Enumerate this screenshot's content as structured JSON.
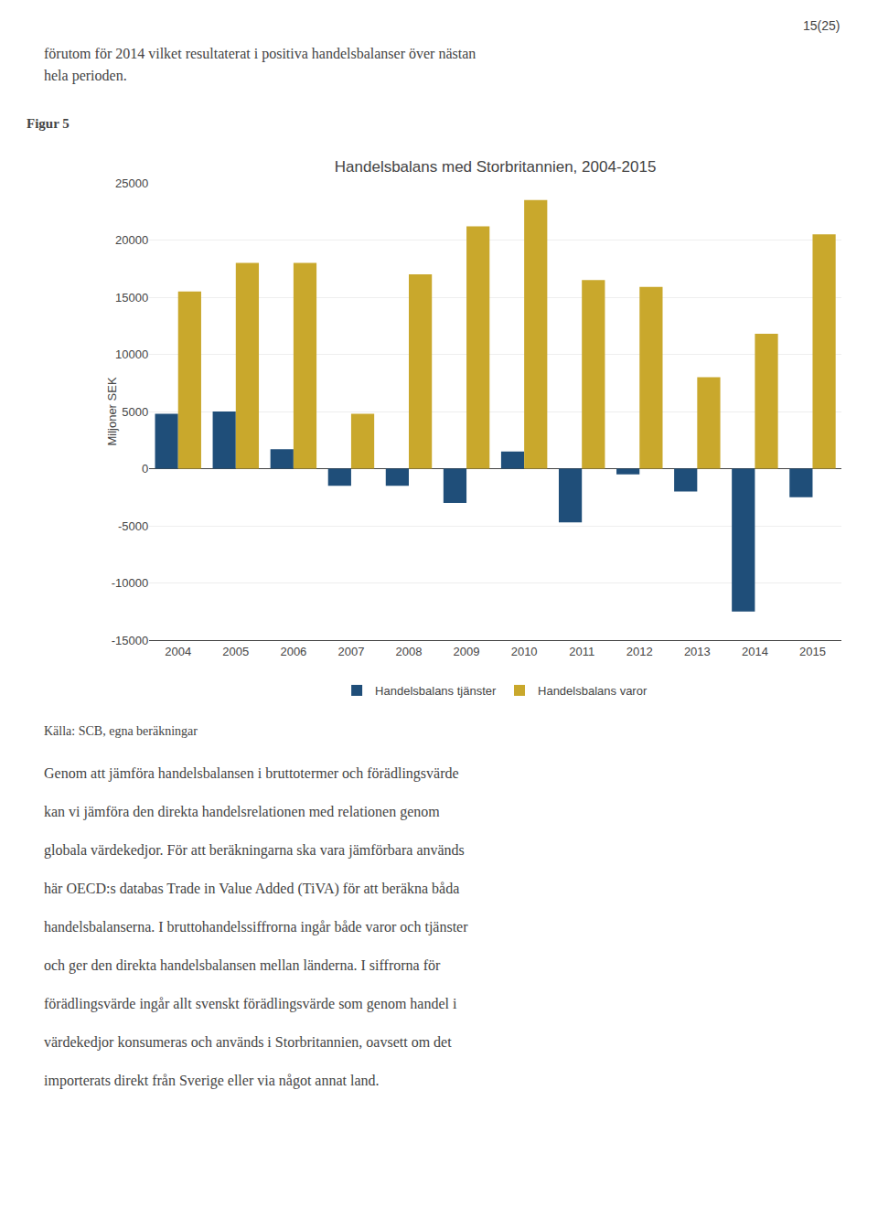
{
  "chart_data": {
    "type": "bar",
    "title": "Handelsbalans med Storbritannien, 2004-2015",
    "ylabel": "Miljoner SEK",
    "categories": [
      "2004",
      "2005",
      "2006",
      "2007",
      "2008",
      "2009",
      "2010",
      "2011",
      "2012",
      "2013",
      "2014",
      "2015"
    ],
    "series": [
      {
        "name": "Handelsbalans tjänster",
        "color": "#1F4E79",
        "values": [
          4800,
          5000,
          1700,
          -1500,
          -1500,
          -3000,
          1500,
          -4700,
          -500,
          -2000,
          -12500,
          -2500
        ]
      },
      {
        "name": "Handelsbalans varor",
        "color": "#C9A82C",
        "values": [
          15500,
          18000,
          18000,
          4800,
          17000,
          21200,
          23500,
          16500,
          15900,
          8000,
          11800,
          20500
        ]
      }
    ],
    "ylim": [
      -15000,
      25000
    ],
    "yticks": [
      -15000,
      -10000,
      -5000,
      0,
      5000,
      10000,
      15000,
      20000,
      25000
    ],
    "grid": true,
    "legend": "bottom"
  },
  "page_number": "15(25)",
  "text_above": [
    "förutom för 2014 vilket resultaterat i positiva handelsbalanser över nästan",
    "hela perioden."
  ],
  "figure_label": "Figur 5",
  "source": "Källa: SCB, egna beräkningar",
  "body": [
    "Genom att jämföra handelsbalansen i bruttotermer och förädlingsvärde",
    "kan vi jämföra den direkta handelsrelationen med relationen genom",
    "globala värdekedjor. För att beräkningarna ska vara jämförbara används",
    "här OECD:s databas Trade in Value Added (TiVA) för att beräkna båda",
    "handelsbalanserna. I bruttohandelssiffrorna ingår både varor och tjänster",
    "och ger den direkta handelsbalansen mellan länderna. I siffrorna för",
    "förädlingsvärde ingår allt svenskt förädlingsvärde som genom handel i",
    "värdekedjor konsumeras och används i Storbritannien, oavsett om det",
    "importerats direkt från Sverige eller via något annat land."
  ]
}
